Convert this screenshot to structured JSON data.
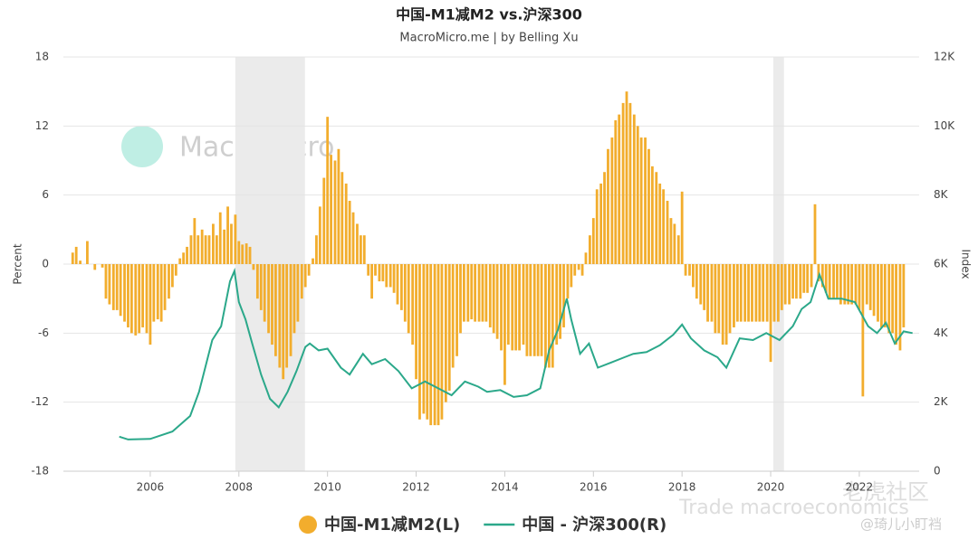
{
  "chart_data": {
    "type": "combo",
    "title": "中国-M1减M2 vs.沪深300",
    "subtitle": "MacroMicro.me | by Belling Xu",
    "watermark": "MacroMicro",
    "annotations": [
      "Trade macroeconomics",
      "老虎社区",
      "@琦儿小盯裆"
    ],
    "ylabel": "Percent",
    "y2label": "Index",
    "xlim": [
      2004.04,
      2023.35
    ],
    "xticks": [
      2006,
      2008,
      2010,
      2012,
      2014,
      2016,
      2018,
      2020,
      2022
    ],
    "ylim": [
      -18,
      18
    ],
    "yticks": [
      -18,
      -12,
      -6,
      0,
      6,
      12,
      18
    ],
    "y2lim": [
      0,
      12000
    ],
    "y2ticks": [
      0,
      {
        "value": 2000,
        "label": "2K"
      },
      {
        "value": 4000,
        "label": "4K"
      },
      {
        "value": 6000,
        "label": "6K"
      },
      {
        "value": 8000,
        "label": "8K"
      },
      {
        "value": 10000,
        "label": "10K"
      },
      {
        "value": 12000,
        "label": "12K"
      }
    ],
    "grid": true,
    "shaded_ranges": [
      [
        2007.92,
        2009.49
      ],
      [
        2020.06,
        2020.3
      ]
    ],
    "series": [
      {
        "name": "中国-M1减M2(L)",
        "type": "bar",
        "color": "#f2ad2d",
        "x": [
          2004.25,
          2004.33,
          2004.42,
          2004.5,
          2004.58,
          2004.67,
          2004.75,
          2004.83,
          2004.92,
          2005.0,
          2005.08,
          2005.17,
          2005.25,
          2005.33,
          2005.42,
          2005.5,
          2005.58,
          2005.67,
          2005.75,
          2005.83,
          2005.92,
          2006.0,
          2006.08,
          2006.17,
          2006.25,
          2006.33,
          2006.42,
          2006.5,
          2006.58,
          2006.67,
          2006.75,
          2006.83,
          2006.92,
          2007.0,
          2007.08,
          2007.17,
          2007.25,
          2007.33,
          2007.42,
          2007.5,
          2007.58,
          2007.67,
          2007.75,
          2007.83,
          2007.92,
          2008.0,
          2008.08,
          2008.17,
          2008.25,
          2008.33,
          2008.42,
          2008.5,
          2008.58,
          2008.67,
          2008.75,
          2008.83,
          2008.92,
          2009.0,
          2009.08,
          2009.17,
          2009.25,
          2009.33,
          2009.42,
          2009.5,
          2009.58,
          2009.67,
          2009.75,
          2009.83,
          2009.92,
          2010.0,
          2010.08,
          2010.17,
          2010.25,
          2010.33,
          2010.42,
          2010.5,
          2010.58,
          2010.67,
          2010.75,
          2010.83,
          2010.92,
          2011.0,
          2011.08,
          2011.17,
          2011.25,
          2011.33,
          2011.42,
          2011.5,
          2011.58,
          2011.67,
          2011.75,
          2011.83,
          2011.92,
          2012.0,
          2012.08,
          2012.17,
          2012.25,
          2012.33,
          2012.42,
          2012.5,
          2012.58,
          2012.67,
          2012.75,
          2012.83,
          2012.92,
          2013.0,
          2013.08,
          2013.17,
          2013.25,
          2013.33,
          2013.42,
          2013.5,
          2013.58,
          2013.67,
          2013.75,
          2013.83,
          2013.92,
          2014.0,
          2014.08,
          2014.17,
          2014.25,
          2014.33,
          2014.42,
          2014.5,
          2014.58,
          2014.67,
          2014.75,
          2014.83,
          2014.92,
          2015.0,
          2015.08,
          2015.17,
          2015.25,
          2015.33,
          2015.42,
          2015.5,
          2015.58,
          2015.67,
          2015.75,
          2015.83,
          2015.92,
          2016.0,
          2016.08,
          2016.17,
          2016.25,
          2016.33,
          2016.42,
          2016.5,
          2016.58,
          2016.67,
          2016.75,
          2016.83,
          2016.92,
          2017.0,
          2017.08,
          2017.17,
          2017.25,
          2017.33,
          2017.42,
          2017.5,
          2017.58,
          2017.67,
          2017.75,
          2017.83,
          2017.92,
          2018.0,
          2018.08,
          2018.17,
          2018.25,
          2018.33,
          2018.42,
          2018.5,
          2018.58,
          2018.67,
          2018.75,
          2018.83,
          2018.92,
          2019.0,
          2019.08,
          2019.17,
          2019.25,
          2019.33,
          2019.42,
          2019.5,
          2019.58,
          2019.67,
          2019.75,
          2019.83,
          2019.92,
          2020.0,
          2020.08,
          2020.17,
          2020.25,
          2020.33,
          2020.42,
          2020.5,
          2020.58,
          2020.67,
          2020.75,
          2020.83,
          2020.92,
          2021.0,
          2021.08,
          2021.17,
          2021.25,
          2021.33,
          2021.42,
          2021.5,
          2021.58,
          2021.67,
          2021.75,
          2021.83,
          2021.92,
          2022.0,
          2022.08,
          2022.17,
          2022.25,
          2022.33,
          2022.42,
          2022.5,
          2022.58,
          2022.67,
          2022.75,
          2022.83,
          2022.92,
          2023.0
        ],
        "values": [
          1.0,
          1.5,
          0.3,
          0,
          2.0,
          0,
          -0.5,
          0,
          -0.3,
          -3,
          -3.5,
          -4,
          -4,
          -4.5,
          -5,
          -5.5,
          -6,
          -6.2,
          -6,
          -5.5,
          -6,
          -7,
          -5,
          -4.8,
          -5,
          -4,
          -3,
          -2,
          -1,
          0.5,
          1,
          1.5,
          2.5,
          4,
          2.5,
          3,
          2.5,
          2.5,
          3.5,
          2.5,
          4.5,
          3,
          5,
          3.5,
          4.3,
          2,
          1.7,
          1.8,
          1.5,
          -0.5,
          -3,
          -4,
          -5,
          -6,
          -7,
          -8,
          -9,
          -10,
          -9,
          -8,
          -6,
          -5,
          -3,
          -2,
          -1,
          0.5,
          2.5,
          5,
          7.5,
          12.8,
          9.5,
          9,
          10,
          8,
          7,
          5.5,
          4.5,
          3.5,
          2.5,
          2.5,
          -1,
          -3,
          -1,
          -1.5,
          -1.5,
          -2,
          -2,
          -2.5,
          -3.5,
          -4,
          -5,
          -6,
          -7,
          -10,
          -13.5,
          -13,
          -13.5,
          -14,
          -14,
          -14,
          -13.5,
          -12,
          -11,
          -9,
          -8,
          -6,
          -5,
          -5,
          -4.8,
          -5,
          -5,
          -5,
          -5,
          -5.5,
          -6,
          -6.5,
          -7.5,
          -10.5,
          -7,
          -7.5,
          -7.5,
          -7.5,
          -7,
          -8,
          -8,
          -8,
          -8,
          -8,
          -9,
          -9,
          -9,
          -7,
          -6.5,
          -5.5,
          -3,
          -2,
          -1,
          -0.5,
          -1,
          1,
          2.5,
          4,
          6.5,
          7,
          8,
          10,
          11,
          12.5,
          13,
          14,
          15,
          14,
          13,
          12,
          11,
          11,
          10,
          8.5,
          8,
          7,
          6.5,
          5.5,
          4,
          3.5,
          2.5,
          6.3,
          -1,
          -1,
          -2,
          -3,
          -3.5,
          -4,
          -5,
          -5,
          -6,
          -6,
          -7,
          -7,
          -6,
          -5.5,
          -5,
          -5,
          -5,
          -5,
          -5,
          -5,
          -5,
          -5,
          -5,
          -8.5,
          -5,
          -5,
          -4,
          -3.5,
          -3.5,
          -3,
          -3,
          -3,
          -2.5,
          -2.5,
          -2,
          5.2,
          -1.5,
          -2,
          -2.5,
          -3,
          -3,
          -3,
          -3.5,
          -3.5,
          -3.5,
          -3.5,
          -3.5,
          -4,
          -11.5,
          -3.5,
          -4,
          -4.5,
          -5,
          -5.5,
          -5.5,
          -6,
          -6,
          -7,
          -7.5,
          -5.5
        ]
      },
      {
        "name": "中国 - 沪深300(R)",
        "type": "line",
        "axis": "y2",
        "color": "#2ba88a",
        "x": [
          2005.3,
          2005.5,
          2006.0,
          2006.5,
          2006.9,
          2007.1,
          2007.4,
          2007.6,
          2007.8,
          2007.9,
          2008.0,
          2008.15,
          2008.3,
          2008.5,
          2008.7,
          2008.9,
          2009.1,
          2009.3,
          2009.5,
          2009.6,
          2009.8,
          2010.0,
          2010.3,
          2010.5,
          2010.8,
          2011.0,
          2011.3,
          2011.6,
          2011.9,
          2012.2,
          2012.5,
          2012.8,
          2013.1,
          2013.4,
          2013.6,
          2013.9,
          2014.2,
          2014.5,
          2014.8,
          2015.0,
          2015.2,
          2015.4,
          2015.5,
          2015.7,
          2015.9,
          2016.1,
          2016.4,
          2016.7,
          2016.9,
          2017.2,
          2017.5,
          2017.8,
          2018.0,
          2018.2,
          2018.5,
          2018.8,
          2019.0,
          2019.3,
          2019.6,
          2019.9,
          2020.2,
          2020.5,
          2020.7,
          2020.9,
          2021.1,
          2021.3,
          2021.6,
          2021.9,
          2022.2,
          2022.4,
          2022.6,
          2022.8,
          2023.0,
          2023.2
        ],
        "values": [
          1000,
          920,
          935,
          1150,
          1600,
          2300,
          3800,
          4200,
          5500,
          5800,
          4900,
          4400,
          3700,
          2800,
          2100,
          1850,
          2300,
          2900,
          3600,
          3700,
          3500,
          3550,
          3000,
          2800,
          3400,
          3100,
          3250,
          2900,
          2400,
          2600,
          2400,
          2200,
          2600,
          2450,
          2300,
          2350,
          2150,
          2200,
          2400,
          3500,
          4100,
          5000,
          4400,
          3400,
          3700,
          3000,
          3150,
          3300,
          3400,
          3450,
          3650,
          3950,
          4250,
          3850,
          3500,
          3300,
          3000,
          3850,
          3800,
          4000,
          3800,
          4200,
          4700,
          4900,
          5700,
          5000,
          5000,
          4900,
          4200,
          4000,
          4300,
          3700,
          4050,
          4000
        ]
      }
    ]
  }
}
